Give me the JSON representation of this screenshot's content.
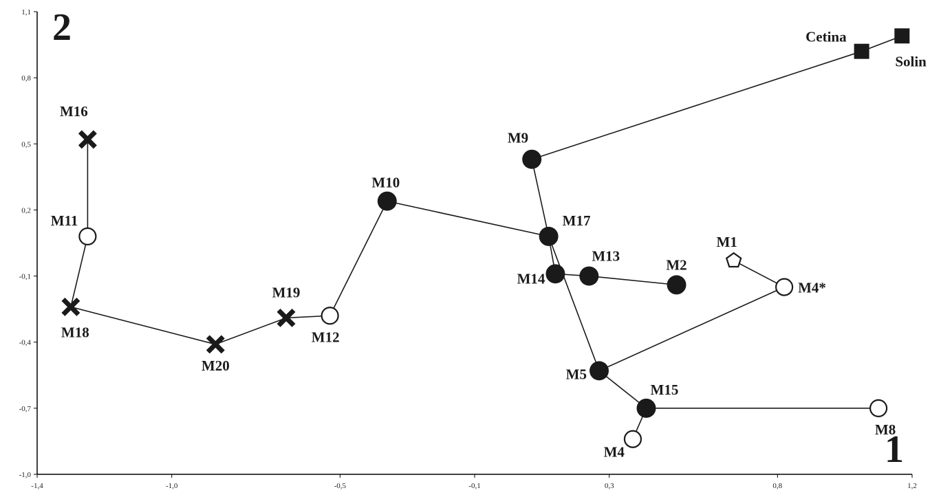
{
  "chart_data": {
    "type": "scatter",
    "xlim": [
      -1.4,
      1.2
    ],
    "ylim": [
      -1.0,
      1.1
    ],
    "x_ticks": [
      -1.4,
      -1.0,
      -0.5,
      -0.1,
      0.3,
      0.8,
      1.2
    ],
    "x_tick_labels": [
      "-1,4",
      "-1,0",
      "-0,5",
      "-0,1",
      "0,3",
      "0,8",
      "1,2"
    ],
    "y_ticks": [
      1.1,
      0.8,
      0.5,
      0.2,
      -0.1,
      -0.4,
      -0.7,
      -1.0
    ],
    "y_tick_labels": [
      "1,1",
      "0,8",
      "0,5",
      "0,2",
      "-0,1",
      "-0,4",
      "-0,7",
      "-1,0"
    ],
    "grid": false,
    "corner_labels": {
      "y_axis": "2",
      "x_axis": "1"
    },
    "points": [
      {
        "name": "Cetina",
        "x": 1.05,
        "y": 0.92,
        "marker": "square"
      },
      {
        "name": "Solin",
        "x": 1.17,
        "y": 0.99,
        "marker": "square"
      },
      {
        "name": "M9",
        "x": 0.07,
        "y": 0.43,
        "marker": "filled-circle"
      },
      {
        "name": "M10",
        "x": -0.36,
        "y": 0.24,
        "marker": "filled-circle"
      },
      {
        "name": "M17",
        "x": 0.12,
        "y": 0.08,
        "marker": "filled-circle"
      },
      {
        "name": "M14",
        "x": 0.14,
        "y": -0.09,
        "marker": "filled-circle"
      },
      {
        "name": "M13",
        "x": 0.24,
        "y": -0.1,
        "marker": "filled-circle"
      },
      {
        "name": "M2",
        "x": 0.5,
        "y": -0.14,
        "marker": "filled-circle"
      },
      {
        "name": "M5",
        "x": 0.27,
        "y": -0.53,
        "marker": "filled-circle"
      },
      {
        "name": "M15",
        "x": 0.41,
        "y": -0.7,
        "marker": "filled-circle"
      },
      {
        "name": "M11",
        "x": -1.25,
        "y": 0.08,
        "marker": "open-circle"
      },
      {
        "name": "M12",
        "x": -0.53,
        "y": -0.28,
        "marker": "open-circle"
      },
      {
        "name": "M4*",
        "x": 0.82,
        "y": -0.15,
        "marker": "open-circle"
      },
      {
        "name": "M8",
        "x": 1.1,
        "y": -0.7,
        "marker": "open-circle"
      },
      {
        "name": "M4",
        "x": 0.37,
        "y": -0.84,
        "marker": "open-circle"
      },
      {
        "name": "M1",
        "x": 0.67,
        "y": -0.03,
        "marker": "open-pentagon"
      },
      {
        "name": "M16",
        "x": -1.25,
        "y": 0.52,
        "marker": "cross"
      },
      {
        "name": "M18",
        "x": -1.3,
        "y": -0.24,
        "marker": "cross"
      },
      {
        "name": "M20",
        "x": -0.87,
        "y": -0.41,
        "marker": "cross"
      },
      {
        "name": "M19",
        "x": -0.66,
        "y": -0.29,
        "marker": "cross"
      }
    ],
    "edges": [
      [
        "Cetina",
        "Solin"
      ],
      [
        "Cetina",
        "M9"
      ],
      [
        "M9",
        "M17"
      ],
      [
        "M10",
        "M17"
      ],
      [
        "M17",
        "M14"
      ],
      [
        "M17",
        "M5"
      ],
      [
        "M14",
        "M13"
      ],
      [
        "M13",
        "M2"
      ],
      [
        "M5",
        "M4*"
      ],
      [
        "M4*",
        "M1"
      ],
      [
        "M5",
        "M15"
      ],
      [
        "M15",
        "M8"
      ],
      [
        "M15",
        "M4"
      ],
      [
        "M10",
        "M12"
      ],
      [
        "M12",
        "M19"
      ],
      [
        "M19",
        "M20"
      ],
      [
        "M20",
        "M18"
      ],
      [
        "M18",
        "M11"
      ],
      [
        "M11",
        "M16"
      ]
    ]
  }
}
